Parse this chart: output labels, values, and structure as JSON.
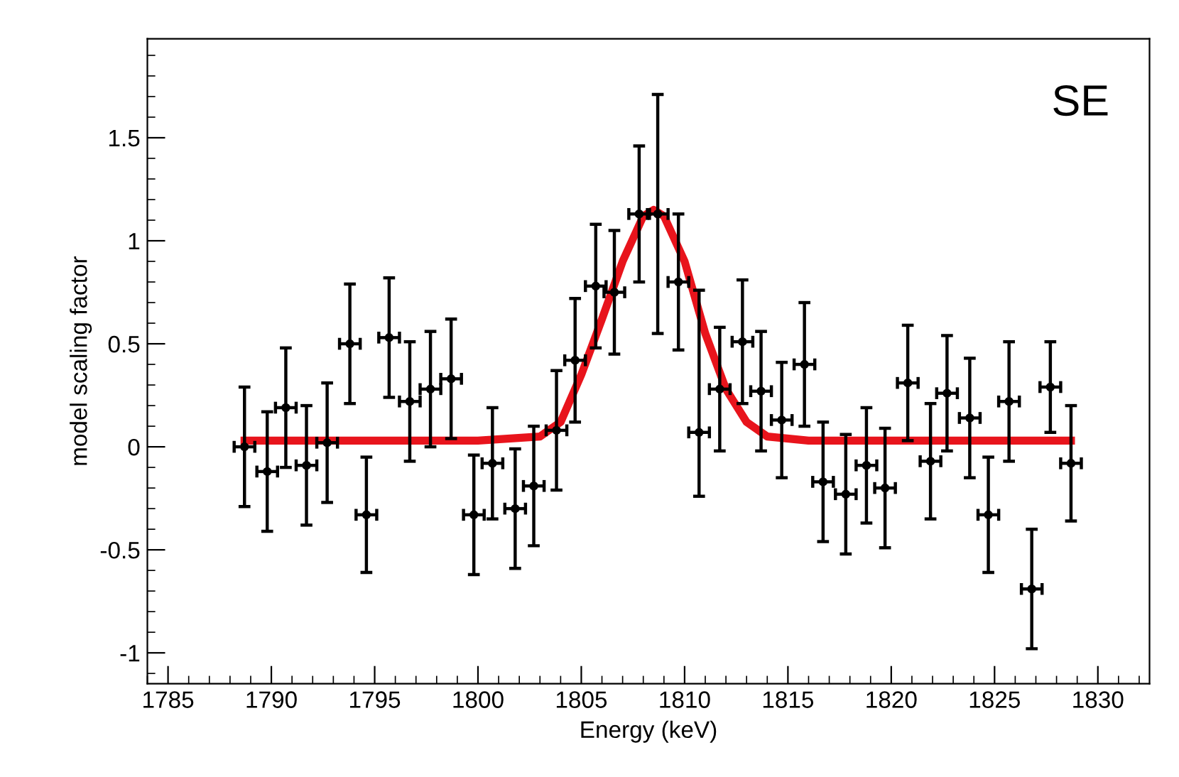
{
  "chart_data": {
    "type": "scatter",
    "xlabel": "Energy (keV)",
    "ylabel": "model scaling factor",
    "annotations": [
      "SE"
    ],
    "xlim": [
      1784,
      1832.5
    ],
    "ylim": [
      -1.15,
      1.98
    ],
    "xticks": [
      1785,
      1790,
      1795,
      1800,
      1805,
      1810,
      1815,
      1820,
      1825,
      1830
    ],
    "yticks": [
      {
        "value": -1,
        "label": "-1"
      },
      {
        "value": -0.5,
        "label": "-0.5"
      },
      0,
      0.5,
      1,
      1.5
    ],
    "grid": false,
    "series": [
      {
        "color": "#000000",
        "marker": "circle",
        "x": [
          1788.7,
          1789.8,
          1790.7,
          1791.7,
          1792.7,
          1793.8,
          1794.6,
          1795.7,
          1796.7,
          1797.7,
          1798.7,
          1799.8,
          1800.7,
          1801.8,
          1802.7,
          1803.8,
          1804.7,
          1805.7,
          1806.6,
          1807.8,
          1808.7,
          1809.7,
          1810.7,
          1811.7,
          1812.8,
          1813.7,
          1814.7,
          1815.8,
          1816.7,
          1817.8,
          1818.8,
          1819.7,
          1820.8,
          1821.9,
          1822.7,
          1823.8,
          1824.7,
          1825.7,
          1826.8,
          1827.7,
          1828.7
        ],
        "values": [
          0,
          -0.12,
          0.19,
          -0.09,
          0.02,
          0.5,
          -0.33,
          0.53,
          0.22,
          0.28,
          0.33,
          -0.33,
          -0.08,
          -0.3,
          -0.19,
          0.08,
          0.42,
          0.78,
          0.75,
          1.13,
          1.13,
          0.8,
          0.07,
          0.28,
          0.51,
          0.27,
          0.13,
          0.4,
          -0.17,
          -0.23,
          -0.09,
          -0.2,
          0.31,
          -0.07,
          0.26,
          0.14,
          -0.33,
          0.22,
          -0.69,
          0.29,
          -0.08
        ],
        "errors": [
          0.29,
          0.29,
          0.29,
          0.29,
          0.29,
          0.29,
          0.28,
          0.29,
          0.29,
          0.28,
          0.29,
          0.29,
          0.27,
          0.29,
          0.29,
          0.29,
          0.3,
          0.3,
          0.3,
          0.33,
          0.58,
          0.33,
          [
            -0.24,
            0.76
          ],
          0.3,
          0.3,
          0.29,
          0.28,
          0.3,
          0.29,
          0.29,
          0.28,
          0.29,
          0.28,
          0.28,
          0.28,
          0.29,
          0.28,
          0.29,
          0.29,
          0.22,
          0.28
        ],
        "xerrors": [
          0.5,
          0.5,
          0.5,
          0.5,
          0.5,
          0.5,
          0.5,
          0.5,
          0.5,
          0.5,
          0.5,
          0.5,
          0.5,
          0.5,
          0.5,
          0.5,
          0.5,
          0.5,
          0.5,
          0.5,
          0.5,
          0.5,
          0.5,
          0.5,
          0.5,
          0.5,
          0.5,
          0.5,
          0.5,
          0.5,
          0.5,
          0.5,
          0.5,
          0.5,
          0.5,
          0.5,
          0.5,
          0.5,
          0.5,
          0.5,
          0.5
        ]
      },
      {
        "type": "line",
        "color": "#e8141c",
        "x": [
          1788.7,
          1800,
          1803,
          1804,
          1805,
          1806,
          1807,
          1808,
          1808.5,
          1809,
          1810,
          1811,
          1812,
          1813,
          1814,
          1816,
          1828.7
        ],
        "values": [
          0.03,
          0.03,
          0.05,
          0.12,
          0.35,
          0.62,
          0.9,
          1.12,
          1.15,
          1.12,
          0.9,
          0.55,
          0.28,
          0.12,
          0.05,
          0.03,
          0.03
        ]
      }
    ]
  }
}
